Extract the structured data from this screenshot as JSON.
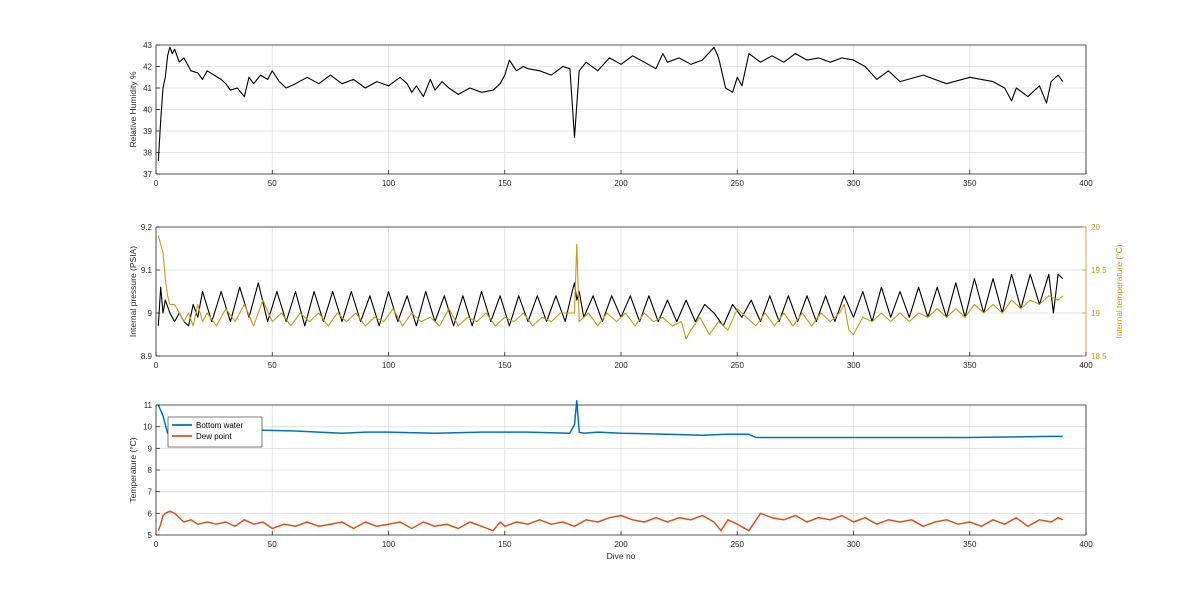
{
  "chart_data": [
    {
      "type": "line",
      "xlabel": "",
      "ylabel": "Relative Humidity %",
      "xlim": [
        0,
        400
      ],
      "ylim": [
        37,
        43
      ],
      "xticks": [
        0,
        50,
        100,
        150,
        200,
        250,
        300,
        350,
        400
      ],
      "yticks": [
        37,
        38,
        39,
        40,
        41,
        42,
        43
      ],
      "grid": true,
      "series": [
        {
          "color": "#000000",
          "x": [
            1,
            2,
            3,
            4,
            5,
            6,
            7,
            8,
            10,
            12,
            15,
            18,
            20,
            22,
            25,
            28,
            30,
            32,
            35,
            38,
            40,
            42,
            45,
            48,
            50,
            53,
            56,
            60,
            65,
            70,
            75,
            80,
            85,
            90,
            95,
            100,
            105,
            108,
            110,
            112,
            115,
            118,
            120,
            123,
            126,
            130,
            135,
            140,
            145,
            148,
            150,
            152,
            155,
            158,
            160,
            165,
            170,
            175,
            178,
            180,
            182,
            185,
            190,
            195,
            200,
            205,
            210,
            215,
            218,
            220,
            225,
            230,
            235,
            240,
            242,
            245,
            248,
            250,
            252,
            255,
            260,
            265,
            270,
            275,
            280,
            285,
            290,
            295,
            300,
            305,
            310,
            315,
            320,
            330,
            340,
            350,
            360,
            365,
            368,
            370,
            375,
            380,
            383,
            385,
            388,
            390
          ],
          "y": [
            37.6,
            39.5,
            41,
            41.5,
            42.5,
            42.9,
            42.6,
            42.8,
            42.2,
            42.4,
            41.8,
            41.7,
            41.4,
            41.8,
            41.6,
            41.4,
            41.2,
            40.9,
            41.0,
            40.6,
            41.5,
            41.2,
            41.6,
            41.4,
            41.8,
            41.3,
            41.0,
            41.2,
            41.5,
            41.2,
            41.6,
            41.2,
            41.4,
            41.0,
            41.3,
            41.1,
            41.5,
            41.2,
            40.8,
            41.1,
            40.6,
            41.4,
            40.9,
            41.3,
            41.0,
            40.7,
            41.0,
            40.8,
            40.9,
            41.2,
            41.6,
            42.3,
            41.8,
            42.0,
            41.9,
            41.8,
            41.6,
            42.0,
            41.9,
            38.7,
            41.8,
            42.2,
            41.8,
            42.4,
            42.1,
            42.5,
            42.2,
            41.9,
            42.6,
            42.2,
            42.4,
            42.1,
            42.3,
            42.9,
            42.4,
            41.0,
            40.8,
            41.5,
            41.1,
            42.6,
            42.2,
            42.5,
            42.2,
            42.6,
            42.3,
            42.4,
            42.2,
            42.4,
            42.3,
            42.0,
            41.4,
            41.8,
            41.3,
            41.6,
            41.2,
            41.5,
            41.3,
            41.0,
            40.4,
            41.0,
            40.6,
            41.1,
            40.3,
            41.3,
            41.6,
            41.3
          ]
        }
      ]
    },
    {
      "type": "line",
      "xlabel": "",
      "ylabel": "Internal pressure (PSIA)",
      "y2label": "Internal temperature (°C)",
      "xlim": [
        0,
        400
      ],
      "ylim": [
        8.9,
        9.2
      ],
      "y2lim": [
        18.5,
        20
      ],
      "xticks": [
        0,
        50,
        100,
        150,
        200,
        250,
        300,
        350,
        400
      ],
      "yticks": [
        8.9,
        9,
        9.1,
        9.2
      ],
      "y2ticks": [
        18.5,
        19,
        19.5,
        20
      ],
      "grid": true,
      "series": [
        {
          "axis": "left",
          "color": "#000000",
          "x": [
            1,
            2,
            3,
            4,
            6,
            8,
            10,
            12,
            14,
            16,
            18,
            20,
            24,
            28,
            32,
            36,
            40,
            44,
            48,
            52,
            56,
            60,
            64,
            68,
            72,
            76,
            80,
            84,
            88,
            92,
            96,
            100,
            104,
            108,
            112,
            116,
            120,
            124,
            128,
            132,
            136,
            140,
            144,
            148,
            152,
            156,
            160,
            164,
            168,
            172,
            176,
            179,
            180,
            181,
            182,
            184,
            188,
            192,
            196,
            200,
            204,
            208,
            212,
            216,
            220,
            224,
            228,
            232,
            236,
            240,
            244,
            248,
            252,
            256,
            260,
            264,
            268,
            272,
            276,
            280,
            284,
            288,
            292,
            296,
            300,
            304,
            308,
            312,
            316,
            320,
            324,
            328,
            332,
            336,
            340,
            344,
            348,
            352,
            356,
            360,
            364,
            368,
            372,
            376,
            380,
            384,
            386,
            388,
            390
          ],
          "y": [
            8.97,
            9.06,
            9.0,
            9.03,
            9.0,
            8.98,
            9.0,
            8.98,
            8.97,
            9.02,
            8.99,
            9.05,
            8.98,
            9.05,
            8.98,
            9.06,
            8.99,
            9.07,
            8.98,
            9.05,
            8.98,
            9.05,
            8.97,
            9.05,
            8.98,
            9.05,
            8.98,
            9.05,
            8.98,
            9.04,
            8.97,
            9.05,
            8.98,
            9.04,
            8.97,
            9.05,
            8.98,
            9.04,
            8.97,
            9.04,
            8.97,
            9.05,
            8.98,
            9.04,
            8.97,
            9.04,
            8.98,
            9.04,
            8.98,
            9.04,
            8.98,
            9.05,
            9.07,
            9.03,
            9.05,
            8.99,
            9.04,
            8.98,
            9.04,
            8.99,
            9.04,
            8.98,
            9.04,
            8.98,
            9.03,
            8.98,
            9.03,
            8.98,
            9.02,
            9.0,
            8.97,
            9.02,
            8.99,
            9.03,
            8.98,
            9.04,
            8.98,
            9.04,
            8.98,
            9.04,
            8.98,
            9.04,
            8.98,
            9.04,
            8.99,
            9.05,
            8.98,
            9.06,
            8.99,
            9.05,
            8.99,
            9.06,
            8.99,
            9.06,
            8.99,
            9.07,
            8.99,
            9.08,
            9.0,
            9.08,
            9.0,
            9.09,
            9.01,
            9.09,
            9.02,
            9.09,
            9.0,
            9.09,
            9.08
          ]
        },
        {
          "axis": "right",
          "color": "#C49A1A",
          "x": [
            1,
            2,
            3,
            4,
            5,
            6,
            8,
            10,
            12,
            14,
            16,
            18,
            20,
            22,
            26,
            30,
            34,
            38,
            42,
            46,
            50,
            54,
            58,
            62,
            66,
            70,
            74,
            78,
            82,
            86,
            90,
            94,
            98,
            102,
            106,
            110,
            114,
            118,
            122,
            126,
            130,
            134,
            138,
            142,
            146,
            150,
            154,
            158,
            162,
            166,
            170,
            174,
            178,
            180,
            181,
            182,
            186,
            190,
            194,
            198,
            202,
            206,
            210,
            214,
            218,
            222,
            226,
            228,
            230,
            234,
            238,
            242,
            246,
            250,
            254,
            258,
            262,
            266,
            270,
            274,
            278,
            282,
            286,
            290,
            294,
            296,
            298,
            300,
            304,
            308,
            312,
            316,
            320,
            324,
            328,
            332,
            336,
            340,
            344,
            348,
            352,
            356,
            360,
            364,
            368,
            372,
            376,
            380,
            384,
            388,
            390
          ],
          "y": [
            19.9,
            19.8,
            19.7,
            19.4,
            19.2,
            19.1,
            19.1,
            19.0,
            18.9,
            19.0,
            18.85,
            19.1,
            18.9,
            19.0,
            18.85,
            19.05,
            18.9,
            19.1,
            18.85,
            19.15,
            18.9,
            19.0,
            18.85,
            19.0,
            18.9,
            19.0,
            18.85,
            19.0,
            18.9,
            19.0,
            18.85,
            18.95,
            18.9,
            19.05,
            18.85,
            19.0,
            18.9,
            18.95,
            18.85,
            19.05,
            18.85,
            18.95,
            18.9,
            19.0,
            18.85,
            18.95,
            18.9,
            19.0,
            18.85,
            18.95,
            18.9,
            19.0,
            19.0,
            19.0,
            19.8,
            18.9,
            19.0,
            18.85,
            19.0,
            18.9,
            19.0,
            18.85,
            19.0,
            18.9,
            18.95,
            18.85,
            18.9,
            18.7,
            18.8,
            18.95,
            18.75,
            18.9,
            18.8,
            19.05,
            18.95,
            18.85,
            19.0,
            18.85,
            19.0,
            18.85,
            19.0,
            18.85,
            19.0,
            18.9,
            19.0,
            19.1,
            18.8,
            18.75,
            18.95,
            18.9,
            19.0,
            18.9,
            19.0,
            18.9,
            19.0,
            18.95,
            19.05,
            18.95,
            19.05,
            18.95,
            19.1,
            19.0,
            19.1,
            19.0,
            19.15,
            19.05,
            19.15,
            19.1,
            19.2,
            19.15,
            19.2
          ]
        }
      ]
    },
    {
      "type": "line",
      "xlabel": "Dive no",
      "ylabel": "Temperature (°C)",
      "xlim": [
        0,
        400
      ],
      "ylim": [
        5,
        11
      ],
      "xticks": [
        0,
        50,
        100,
        150,
        200,
        250,
        300,
        350,
        400
      ],
      "yticks": [
        5,
        6,
        7,
        8,
        9,
        10,
        11
      ],
      "grid": true,
      "legend": "top-left",
      "series": [
        {
          "name": "Bottom water",
          "color": "#0072BD",
          "x": [
            1,
            3,
            5,
            6,
            8,
            10,
            20,
            40,
            60,
            80,
            90,
            100,
            120,
            140,
            160,
            178,
            180,
            181,
            182,
            184,
            190,
            200,
            220,
            235,
            245,
            255,
            258,
            262,
            300,
            350,
            385,
            390
          ],
          "y": [
            11,
            10.5,
            9.7,
            9.8,
            9.85,
            9.85,
            9.85,
            9.85,
            9.8,
            9.7,
            9.75,
            9.75,
            9.7,
            9.75,
            9.75,
            9.7,
            10.1,
            11.2,
            9.75,
            9.7,
            9.75,
            9.7,
            9.65,
            9.6,
            9.65,
            9.65,
            9.5,
            9.5,
            9.5,
            9.5,
            9.55,
            9.55
          ]
        },
        {
          "name": "Dew point",
          "color": "#D95319",
          "x": [
            1,
            2,
            3,
            4,
            6,
            8,
            10,
            12,
            15,
            18,
            22,
            26,
            30,
            34,
            38,
            42,
            46,
            50,
            55,
            60,
            65,
            70,
            75,
            80,
            85,
            90,
            95,
            100,
            105,
            110,
            115,
            120,
            125,
            130,
            135,
            140,
            145,
            148,
            150,
            155,
            160,
            165,
            170,
            175,
            180,
            185,
            190,
            195,
            200,
            205,
            210,
            215,
            220,
            225,
            230,
            235,
            240,
            243,
            246,
            250,
            255,
            260,
            265,
            270,
            275,
            280,
            285,
            290,
            295,
            300,
            305,
            310,
            315,
            320,
            325,
            330,
            335,
            340,
            345,
            350,
            355,
            360,
            365,
            370,
            375,
            380,
            385,
            388,
            390
          ],
          "y": [
            5.2,
            5.5,
            5.9,
            6.0,
            6.1,
            6.0,
            5.8,
            5.6,
            5.7,
            5.5,
            5.6,
            5.5,
            5.6,
            5.4,
            5.7,
            5.5,
            5.6,
            5.3,
            5.5,
            5.4,
            5.6,
            5.4,
            5.5,
            5.6,
            5.3,
            5.6,
            5.4,
            5.5,
            5.6,
            5.3,
            5.6,
            5.4,
            5.5,
            5.3,
            5.6,
            5.4,
            5.2,
            5.6,
            5.4,
            5.6,
            5.5,
            5.7,
            5.5,
            5.6,
            5.4,
            5.7,
            5.6,
            5.8,
            5.9,
            5.7,
            5.6,
            5.8,
            5.6,
            5.8,
            5.7,
            5.9,
            5.6,
            5.2,
            5.7,
            5.5,
            5.2,
            6.0,
            5.8,
            5.7,
            5.9,
            5.6,
            5.8,
            5.7,
            5.9,
            5.6,
            5.8,
            5.5,
            5.7,
            5.6,
            5.7,
            5.4,
            5.6,
            5.7,
            5.5,
            5.6,
            5.4,
            5.7,
            5.5,
            5.8,
            5.4,
            5.7,
            5.6,
            5.8,
            5.7
          ]
        }
      ]
    }
  ]
}
